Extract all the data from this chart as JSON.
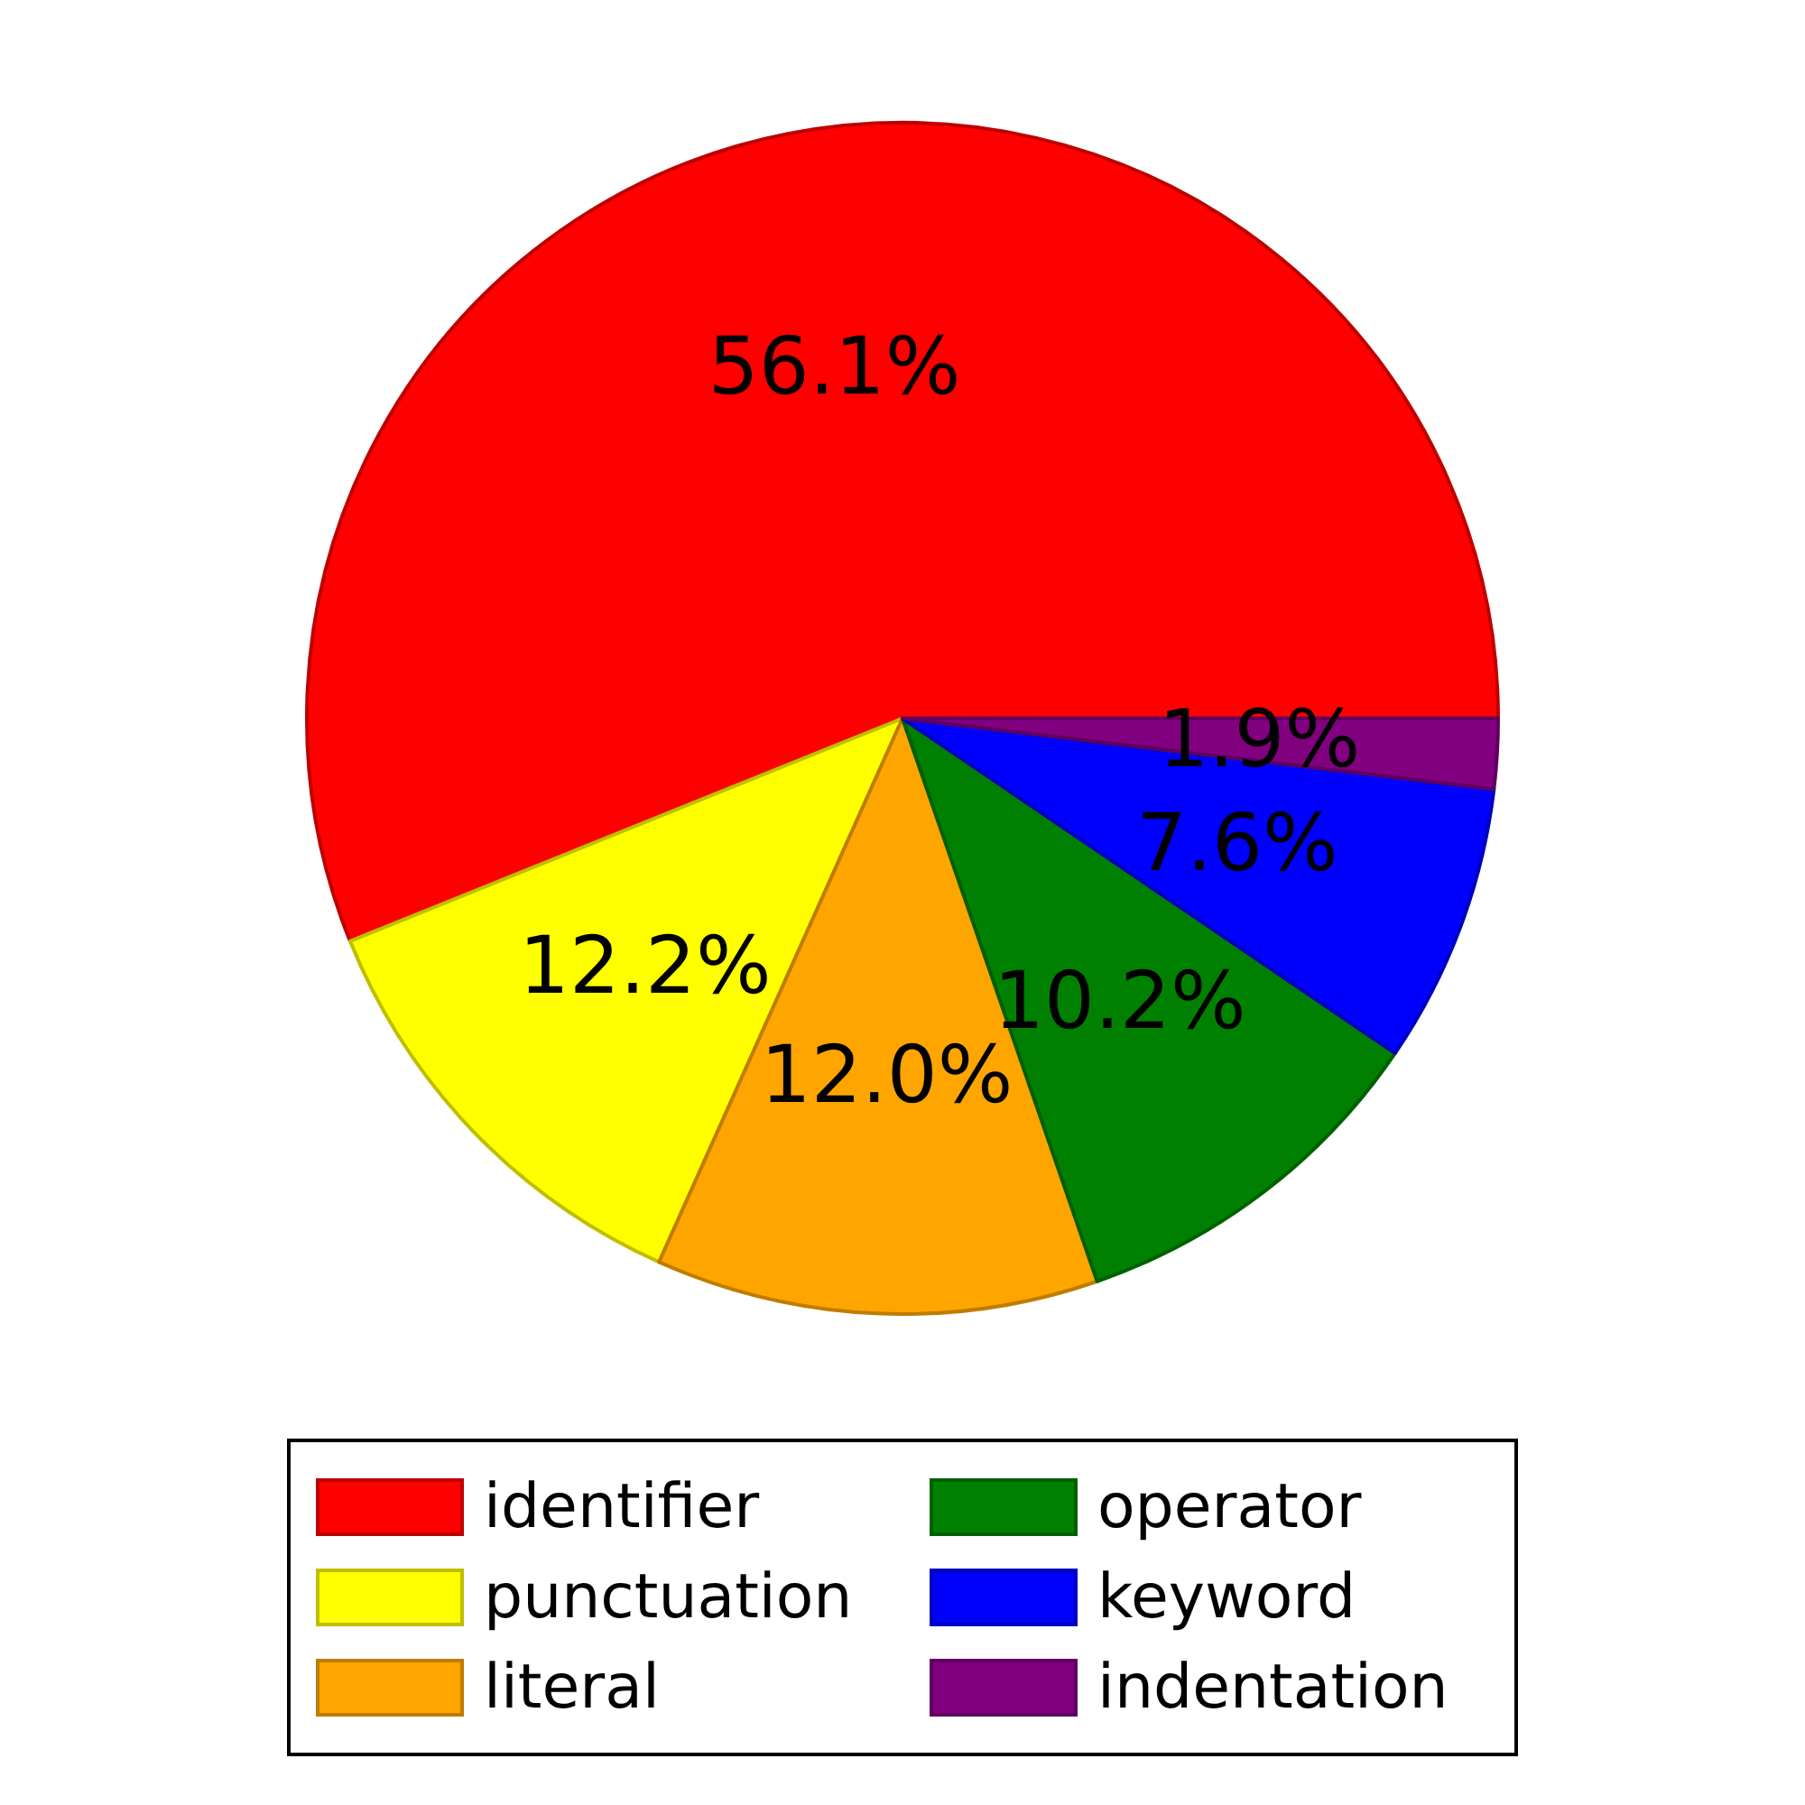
{
  "chart_data": {
    "type": "pie",
    "categories": [
      "identifier",
      "punctuation",
      "literal",
      "operator",
      "keyword",
      "indentation"
    ],
    "values": [
      56.1,
      12.2,
      12.0,
      10.2,
      7.6,
      1.9
    ],
    "colors": [
      "#ff0000",
      "#ffff00",
      "#ffa500",
      "#008000",
      "#0000ff",
      "#800080"
    ],
    "value_labels": [
      "56.1%",
      "12.2%",
      "12.0%",
      "10.2%",
      "7.6%",
      "1.9%"
    ],
    "legend": "bottom"
  }
}
